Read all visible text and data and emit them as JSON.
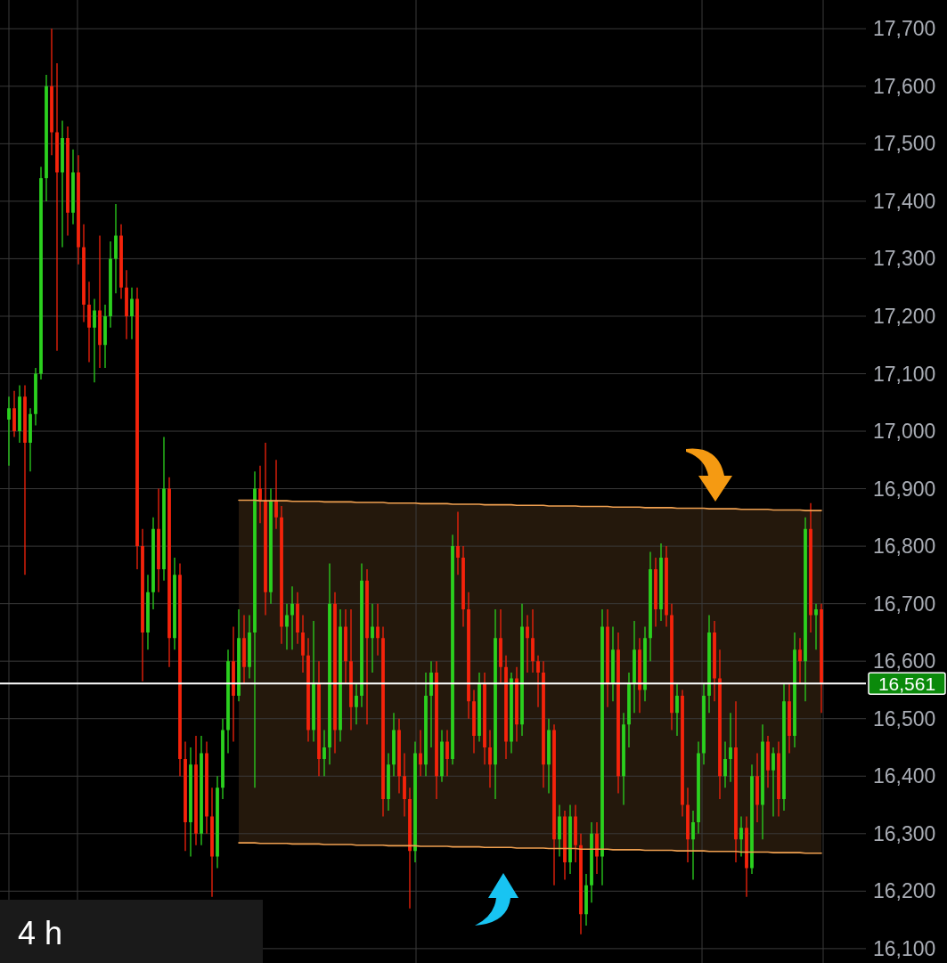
{
  "chart_data": {
    "type": "candlestick",
    "categories": [
      null,
      null,
      null,
      null,
      null,
      null,
      null,
      null,
      null,
      null,
      null,
      null,
      null,
      null,
      null,
      null,
      null,
      null,
      null,
      null,
      null,
      null,
      null,
      null,
      null,
      null,
      null,
      null,
      null,
      null,
      null,
      null,
      null,
      null,
      null,
      null,
      null,
      null,
      null,
      null,
      null,
      null,
      null,
      null,
      null,
      null,
      null,
      null,
      null,
      null,
      null,
      null,
      null,
      null,
      null,
      null,
      null,
      null,
      null,
      null,
      null,
      null,
      null,
      null,
      null,
      null,
      null,
      null,
      null,
      null,
      null,
      null,
      null,
      null,
      null,
      null,
      null,
      null,
      null,
      null,
      null,
      null,
      null,
      null,
      null,
      null,
      null,
      null,
      null,
      null,
      null,
      null,
      null,
      null,
      null,
      null,
      null,
      null,
      null,
      null,
      null,
      null,
      null,
      null,
      null,
      null,
      null,
      null,
      null,
      null,
      null,
      null,
      null,
      null,
      null,
      null,
      null,
      null,
      null,
      null,
      null,
      null,
      null,
      null,
      null,
      null,
      null,
      null,
      null,
      null,
      null,
      null,
      null,
      null,
      null,
      null,
      null,
      null,
      null,
      null,
      null,
      null,
      null,
      null,
      null,
      null,
      null,
      null,
      null,
      null,
      null,
      null,
      null
    ],
    "ohlc": [
      [
        17020,
        17060,
        16940,
        17040
      ],
      [
        17040,
        17070,
        16990,
        17000
      ],
      [
        17000,
        17080,
        16980,
        17060
      ],
      [
        17060,
        17080,
        16750,
        16980
      ],
      [
        16980,
        17040,
        16930,
        17030
      ],
      [
        17030,
        17110,
        17010,
        17100
      ],
      [
        17100,
        17460,
        17090,
        17440
      ],
      [
        17440,
        17620,
        17400,
        17600
      ],
      [
        17600,
        17700,
        17480,
        17520
      ],
      [
        17520,
        17640,
        17140,
        17450
      ],
      [
        17450,
        17540,
        17320,
        17510
      ],
      [
        17510,
        17530,
        17340,
        17380
      ],
      [
        17380,
        17490,
        17360,
        17450
      ],
      [
        17450,
        17480,
        17290,
        17320
      ],
      [
        17320,
        17360,
        17190,
        17220
      ],
      [
        17220,
        17260,
        17120,
        17180
      ],
      [
        17180,
        17230,
        17085,
        17210
      ],
      [
        17210,
        17340,
        17110,
        17150
      ],
      [
        17150,
        17220,
        17110,
        17200
      ],
      [
        17200,
        17330,
        17180,
        17300
      ],
      [
        17300,
        17395,
        17240,
        17340
      ],
      [
        17340,
        17360,
        17230,
        17250
      ],
      [
        17250,
        17280,
        17160,
        17200
      ],
      [
        17200,
        17250,
        17160,
        17230
      ],
      [
        17230,
        17250,
        16760,
        16800
      ],
      [
        16800,
        16830,
        16565,
        16650
      ],
      [
        16650,
        16750,
        16620,
        16720
      ],
      [
        16720,
        16850,
        16690,
        16830
      ],
      [
        16830,
        16900,
        16720,
        16760
      ],
      [
        16760,
        16990,
        16740,
        16900
      ],
      [
        16900,
        16920,
        16590,
        16640
      ],
      [
        16640,
        16780,
        16620,
        16750
      ],
      [
        16750,
        16770,
        16400,
        16430
      ],
      [
        16430,
        16460,
        16270,
        16320
      ],
      [
        16320,
        16450,
        16260,
        16420
      ],
      [
        16420,
        16470,
        16280,
        16300
      ],
      [
        16300,
        16470,
        16280,
        16440
      ],
      [
        16440,
        16460,
        16300,
        16330
      ],
      [
        16330,
        16380,
        16190,
        16260
      ],
      [
        16260,
        16400,
        16240,
        16380
      ],
      [
        16380,
        16500,
        16360,
        16480
      ],
      [
        16480,
        16620,
        16440,
        16600
      ],
      [
        16600,
        16660,
        16460,
        16540
      ],
      [
        16540,
        16690,
        16530,
        16640
      ],
      [
        16640,
        16680,
        16560,
        16590
      ],
      [
        16590,
        16680,
        16570,
        16650
      ],
      [
        16650,
        16930,
        16380,
        16900
      ],
      [
        16900,
        16940,
        16840,
        16880
      ],
      [
        16880,
        16980,
        16680,
        16720
      ],
      [
        16720,
        16900,
        16700,
        16880
      ],
      [
        16880,
        16950,
        16830,
        16850
      ],
      [
        16850,
        16870,
        16630,
        16660
      ],
      [
        16660,
        16700,
        16620,
        16680
      ],
      [
        16680,
        16730,
        16620,
        16700
      ],
      [
        16700,
        16720,
        16630,
        16650
      ],
      [
        16650,
        16680,
        16580,
        16610
      ],
      [
        16610,
        16640,
        16460,
        16480
      ],
      [
        16480,
        16670,
        16460,
        16560
      ],
      [
        16560,
        16600,
        16400,
        16430
      ],
      [
        16430,
        16480,
        16400,
        16450
      ],
      [
        16450,
        16770,
        16420,
        16700
      ],
      [
        16700,
        16720,
        16440,
        16480
      ],
      [
        16480,
        16690,
        16460,
        16660
      ],
      [
        16660,
        16690,
        16560,
        16600
      ],
      [
        16600,
        16690,
        16480,
        16520
      ],
      [
        16520,
        16560,
        16490,
        16540
      ],
      [
        16540,
        16770,
        16520,
        16740
      ],
      [
        16740,
        16760,
        16490,
        16640
      ],
      [
        16640,
        16700,
        16580,
        16660
      ],
      [
        16660,
        16700,
        16610,
        16640
      ],
      [
        16640,
        16660,
        16330,
        16360
      ],
      [
        16360,
        16440,
        16340,
        16420
      ],
      [
        16420,
        16510,
        16400,
        16480
      ],
      [
        16480,
        16500,
        16370,
        16400
      ],
      [
        16400,
        16440,
        16330,
        16360
      ],
      [
        16360,
        16380,
        16170,
        16270
      ],
      [
        16270,
        16460,
        16250,
        16440
      ],
      [
        16440,
        16480,
        16400,
        16420
      ],
      [
        16420,
        16580,
        16400,
        16540
      ],
      [
        16540,
        16600,
        16450,
        16580
      ],
      [
        16580,
        16600,
        16360,
        16400
      ],
      [
        16400,
        16480,
        16390,
        16460
      ],
      [
        16460,
        16480,
        16400,
        16430
      ],
      [
        16430,
        16820,
        16420,
        16800
      ],
      [
        16800,
        16860,
        16750,
        16780
      ],
      [
        16780,
        16800,
        16660,
        16690
      ],
      [
        16690,
        16720,
        16500,
        16530
      ],
      [
        16530,
        16550,
        16440,
        16470
      ],
      [
        16470,
        16580,
        16460,
        16560
      ],
      [
        16560,
        16580,
        16420,
        16450
      ],
      [
        16450,
        16480,
        16380,
        16420
      ],
      [
        16420,
        16690,
        16360,
        16640
      ],
      [
        16640,
        16690,
        16560,
        16590
      ],
      [
        16590,
        16610,
        16430,
        16460
      ],
      [
        16460,
        16580,
        16440,
        16570
      ],
      [
        16570,
        16590,
        16460,
        16490
      ],
      [
        16490,
        16700,
        16470,
        16660
      ],
      [
        16660,
        16680,
        16580,
        16640
      ],
      [
        16640,
        16690,
        16580,
        16600
      ],
      [
        16600,
        16610,
        16520,
        16580
      ],
      [
        16580,
        16600,
        16380,
        16420
      ],
      [
        16420,
        16500,
        16370,
        16480
      ],
      [
        16480,
        16490,
        16210,
        16290
      ],
      [
        16290,
        16350,
        16260,
        16330
      ],
      [
        16330,
        16340,
        16220,
        16250
      ],
      [
        16250,
        16350,
        16230,
        16330
      ],
      [
        16330,
        16350,
        16250,
        16280
      ],
      [
        16280,
        16300,
        16125,
        16160
      ],
      [
        16160,
        16230,
        16140,
        16210
      ],
      [
        16210,
        16320,
        16180,
        16300
      ],
      [
        16300,
        16320,
        16230,
        16260
      ],
      [
        16260,
        16690,
        16210,
        16660
      ],
      [
        16660,
        16690,
        16520,
        16560
      ],
      [
        16560,
        16660,
        16530,
        16620
      ],
      [
        16620,
        16650,
        16370,
        16400
      ],
      [
        16400,
        16510,
        16350,
        16490
      ],
      [
        16490,
        16580,
        16450,
        16560
      ],
      [
        16560,
        16670,
        16510,
        16620
      ],
      [
        16620,
        16640,
        16510,
        16550
      ],
      [
        16550,
        16660,
        16530,
        16640
      ],
      [
        16640,
        16790,
        16600,
        16760
      ],
      [
        16760,
        16780,
        16660,
        16690
      ],
      [
        16690,
        16805,
        16670,
        16780
      ],
      [
        16780,
        16800,
        16660,
        16680
      ],
      [
        16680,
        16700,
        16480,
        16510
      ],
      [
        16510,
        16560,
        16470,
        16540
      ],
      [
        16540,
        16550,
        16330,
        16350
      ],
      [
        16350,
        16380,
        16250,
        16290
      ],
      [
        16290,
        16340,
        16220,
        16320
      ],
      [
        16320,
        16460,
        16300,
        16440
      ],
      [
        16440,
        16560,
        16420,
        16540
      ],
      [
        16540,
        16680,
        16510,
        16650
      ],
      [
        16650,
        16670,
        16530,
        16570
      ],
      [
        16570,
        16620,
        16360,
        16400
      ],
      [
        16400,
        16460,
        16380,
        16430
      ],
      [
        16430,
        16510,
        16390,
        16450
      ],
      [
        16450,
        16530,
        16250,
        16290
      ],
      [
        16290,
        16330,
        16260,
        16310
      ],
      [
        16310,
        16330,
        16190,
        16240
      ],
      [
        16240,
        16420,
        16230,
        16400
      ],
      [
        16400,
        16440,
        16320,
        16350
      ],
      [
        16350,
        16490,
        16290,
        16460
      ],
      [
        16460,
        16470,
        16380,
        16410
      ],
      [
        16410,
        16450,
        16330,
        16440
      ],
      [
        16440,
        16460,
        16330,
        16360
      ],
      [
        16360,
        16560,
        16340,
        16530
      ],
      [
        16530,
        16560,
        16440,
        16470
      ],
      [
        16470,
        16650,
        16450,
        16620
      ],
      [
        16620,
        16640,
        16560,
        16600
      ],
      [
        16600,
        16850,
        16530,
        16830
      ],
      [
        16830,
        16875,
        16650,
        16680
      ],
      [
        16680,
        16700,
        16620,
        16690
      ],
      [
        16690,
        16700,
        16510,
        16561
      ]
    ],
    "colors": [
      "#2bd11e",
      "#f5230b",
      "#2bd11e",
      "#f5230b",
      "#2bd11e",
      "#2bd11e",
      "#2bd11e",
      "#2bd11e",
      "#f5230b",
      "#f5230b",
      "#2bd11e",
      "#f5230b",
      "#2bd11e",
      "#f5230b",
      "#f5230b",
      "#f5230b",
      "#2bd11e",
      "#f5230b",
      "#2bd11e",
      "#2bd11e",
      "#2bd11e",
      "#f5230b",
      "#f5230b",
      "#2bd11e",
      "#f5230b",
      "#f5230b",
      "#2bd11e",
      "#2bd11e",
      "#f5230b",
      "#2bd11e",
      "#f5230b",
      "#2bd11e",
      "#f5230b",
      "#f5230b",
      "#2bd11e",
      "#f5230b",
      "#2bd11e",
      "#f5230b",
      "#f5230b",
      "#2bd11e",
      "#2bd11e",
      "#2bd11e",
      "#f5230b",
      "#2bd11e",
      "#f5230b",
      "#2bd11e",
      "#2bd11e",
      "#f5230b",
      "#f5230b",
      "#2bd11e",
      "#f5230b",
      "#f5230b",
      "#2bd11e",
      "#2bd11e",
      "#f5230b",
      "#f5230b",
      "#f5230b",
      "#2bd11e",
      "#f5230b",
      "#2bd11e",
      "#2bd11e",
      "#f5230b",
      "#2bd11e",
      "#f5230b",
      "#f5230b",
      "#2bd11e",
      "#2bd11e",
      "#f5230b",
      "#2bd11e",
      "#f5230b",
      "#f5230b",
      "#2bd11e",
      "#2bd11e",
      "#f5230b",
      "#f5230b",
      "#f5230b",
      "#2bd11e",
      "#f5230b",
      "#2bd11e",
      "#2bd11e",
      "#f5230b",
      "#2bd11e",
      "#f5230b",
      "#2bd11e",
      "#f5230b",
      "#f5230b",
      "#f5230b",
      "#f5230b",
      "#2bd11e",
      "#f5230b",
      "#f5230b",
      "#2bd11e",
      "#f5230b",
      "#f5230b",
      "#2bd11e",
      "#f5230b",
      "#2bd11e",
      "#f5230b",
      "#f5230b",
      "#f5230b",
      "#f5230b",
      "#2bd11e",
      "#f5230b",
      "#2bd11e",
      "#f5230b",
      "#2bd11e",
      "#f5230b",
      "#f5230b",
      "#2bd11e",
      "#2bd11e",
      "#f5230b",
      "#2bd11e",
      "#f5230b",
      "#2bd11e",
      "#f5230b",
      "#2bd11e",
      "#2bd11e",
      "#2bd11e",
      "#f5230b",
      "#2bd11e",
      "#2bd11e",
      "#f5230b",
      "#2bd11e",
      "#f5230b",
      "#f5230b",
      "#2bd11e",
      "#f5230b",
      "#f5230b",
      "#2bd11e",
      "#2bd11e",
      "#2bd11e",
      "#2bd11e",
      "#f5230b",
      "#f5230b",
      "#2bd11e",
      "#2bd11e",
      "#f5230b",
      "#2bd11e",
      "#f5230b",
      "#2bd11e",
      "#f5230b",
      "#2bd11e",
      "#f5230b",
      "#2bd11e",
      "#f5230b",
      "#2bd11e",
      "#f5230b",
      "#2bd11e",
      "#f5230b",
      "#2bd11e",
      "#f5230b",
      "#2bd11e",
      "#f5230b"
    ],
    "series": [
      {
        "type": "line",
        "color": "#f0a050",
        "values": [
          null,
          null,
          null,
          null,
          null,
          null,
          null,
          null,
          null,
          null,
          null,
          null,
          null,
          null,
          null,
          null,
          null,
          null,
          null,
          null,
          null,
          null,
          null,
          null,
          null,
          null,
          null,
          null,
          null,
          null,
          null,
          null,
          null,
          null,
          null,
          null,
          null,
          null,
          null,
          null,
          null,
          null,
          null,
          16880,
          16880,
          16880,
          16880,
          16879,
          16879,
          16879,
          16879,
          16879,
          16879,
          16878,
          16878,
          16878,
          16878,
          16878,
          16878,
          16877,
          16877,
          16877,
          16877,
          16877,
          16877,
          16876,
          16876,
          16876,
          16876,
          16876,
          16876,
          16875,
          16875,
          16875,
          16875,
          16875,
          16875,
          16874,
          16874,
          16874,
          16874,
          16874,
          16874,
          16873,
          16873,
          16873,
          16873,
          16873,
          16873,
          16872,
          16872,
          16872,
          16872,
          16872,
          16872,
          16871,
          16871,
          16871,
          16871,
          16871,
          16871,
          16870,
          16870,
          16870,
          16870,
          16870,
          16870,
          16869,
          16869,
          16869,
          16869,
          16869,
          16869,
          16868,
          16868,
          16868,
          16868,
          16868,
          16868,
          16867,
          16867,
          16867,
          16867,
          16867,
          16867,
          16866,
          16866,
          16866,
          16866,
          16866,
          16866,
          16865,
          16865,
          16865,
          16865,
          16865,
          16865,
          16864,
          16864,
          16864,
          16864,
          16864,
          16864,
          16863,
          16863,
          16863,
          16863,
          16863,
          16863,
          16862,
          16862,
          16862,
          16862
        ],
        "upper": [
          null,
          null,
          null,
          null,
          null,
          null,
          null,
          null,
          null,
          null,
          null,
          null,
          null,
          null,
          null,
          null,
          null,
          null,
          null,
          null,
          null,
          null,
          null,
          null,
          null,
          null,
          null,
          null,
          null,
          null,
          null,
          null,
          null,
          null,
          null,
          null,
          null,
          null,
          null,
          null,
          null,
          null,
          null,
          16880,
          16880,
          16880,
          16880,
          16879,
          16879,
          16879,
          16879,
          16879,
          16879,
          16878,
          16878,
          16878,
          16878,
          16878,
          16878,
          16877,
          16877,
          16877,
          16877,
          16877,
          16877,
          16876,
          16876,
          16876,
          16876,
          16876,
          16876,
          16875,
          16875,
          16875,
          16875,
          16875,
          16875,
          16874,
          16874,
          16874,
          16874,
          16874,
          16874,
          16873,
          16873,
          16873,
          16873,
          16873,
          16873,
          16872,
          16872,
          16872,
          16872,
          16872,
          16872,
          16871,
          16871,
          16871,
          16871,
          16871,
          16871,
          16870,
          16870,
          16870,
          16870,
          16870,
          16870,
          16869,
          16869,
          16869,
          16869,
          16869,
          16869,
          16868,
          16868,
          16868,
          16868,
          16868,
          16868,
          16867,
          16867,
          16867,
          16867,
          16867,
          16867,
          16866,
          16866,
          16866,
          16866,
          16866,
          16866,
          16865,
          16865,
          16865,
          16865,
          16865,
          16865,
          16864,
          16864,
          16864,
          16864,
          16864,
          16864,
          16863,
          16863,
          16863,
          16863,
          16863,
          16863,
          16862,
          16862,
          16862,
          16862
        ],
        "lower": [
          null,
          null,
          null,
          null,
          null,
          null,
          null,
          null,
          null,
          null,
          null,
          null,
          null,
          null,
          null,
          null,
          null,
          null,
          null,
          null,
          null,
          null,
          null,
          null,
          null,
          null,
          null,
          null,
          null,
          null,
          null,
          null,
          null,
          null,
          null,
          null,
          null,
          null,
          null,
          null,
          null,
          null,
          null,
          16284,
          16284,
          16284,
          16284,
          16283,
          16283,
          16283,
          16283,
          16283,
          16283,
          16282,
          16282,
          16282,
          16282,
          16282,
          16282,
          16281,
          16281,
          16281,
          16281,
          16281,
          16281,
          16280,
          16280,
          16280,
          16280,
          16280,
          16280,
          16279,
          16279,
          16279,
          16279,
          16279,
          16279,
          16278,
          16278,
          16278,
          16278,
          16278,
          16278,
          16277,
          16277,
          16277,
          16277,
          16277,
          16277,
          16276,
          16276,
          16276,
          16276,
          16276,
          16276,
          16275,
          16275,
          16275,
          16275,
          16275,
          16275,
          16274,
          16274,
          16274,
          16274,
          16274,
          16274,
          16273,
          16273,
          16273,
          16273,
          16273,
          16273,
          16272,
          16272,
          16272,
          16272,
          16272,
          16272,
          16271,
          16271,
          16271,
          16271,
          16271,
          16271,
          16270,
          16270,
          16270,
          16270,
          16270,
          16270,
          16269,
          16269,
          16269,
          16269,
          16269,
          16269,
          16268,
          16268,
          16268,
          16268,
          16268,
          16268,
          16267,
          16267,
          16267,
          16267,
          16267,
          16267,
          16266,
          16266,
          16266,
          16266
        ]
      },
      {
        "type": "line",
        "color": "#f0a050",
        "values": [
          null,
          null,
          null,
          null,
          null,
          null,
          null,
          null,
          null,
          null,
          null,
          null,
          null,
          null,
          null,
          null,
          null,
          null,
          null,
          null,
          null,
          null,
          null,
          null,
          null,
          null,
          null,
          null,
          null,
          null,
          null,
          null,
          null,
          null,
          null,
          null,
          null,
          null,
          null,
          null,
          null,
          null,
          null,
          16284,
          16284,
          16284,
          16284,
          16283,
          16283,
          16283,
          16283,
          16283,
          16283,
          16282,
          16282,
          16282,
          16282,
          16282,
          16282,
          16281,
          16281,
          16281,
          16281,
          16281,
          16281,
          16280,
          16280,
          16280,
          16280,
          16280,
          16280,
          16279,
          16279,
          16279,
          16279,
          16279,
          16279,
          16278,
          16278,
          16278,
          16278,
          16278,
          16278,
          16277,
          16277,
          16277,
          16277,
          16277,
          16277,
          16276,
          16276,
          16276,
          16276,
          16276,
          16276,
          16275,
          16275,
          16275,
          16275,
          16275,
          16275,
          16274,
          16274,
          16274,
          16274,
          16274,
          16274,
          16273,
          16273,
          16273,
          16273,
          16273,
          16273,
          16272,
          16272,
          16272,
          16272,
          16272,
          16272,
          16271,
          16271,
          16271,
          16271,
          16271,
          16271,
          16270,
          16270,
          16270,
          16270,
          16270,
          16270,
          16269,
          16269,
          16269,
          16269,
          16269,
          16269,
          16268,
          16268,
          16268,
          16268,
          16268,
          16268,
          16267,
          16267,
          16267,
          16267,
          16267,
          16267,
          16266,
          16266,
          16266,
          16266
        ]
      }
    ],
    "ylim": [
      16075,
      17750
    ],
    "yticks": [
      {
        "value": 16100,
        "label": "16,100"
      },
      {
        "value": 16200,
        "label": "16,200"
      },
      {
        "value": 16300,
        "label": "16,300"
      },
      {
        "value": 16400,
        "label": "16,400"
      },
      {
        "value": 16500,
        "label": "16,500"
      },
      {
        "value": 16600,
        "label": "16,600"
      },
      {
        "value": 16700,
        "label": "16,700"
      },
      {
        "value": 16800,
        "label": "16,800"
      },
      {
        "value": 16900,
        "label": "16,900"
      },
      {
        "value": 17000,
        "label": "17,000"
      },
      {
        "value": 17100,
        "label": "17,100"
      },
      {
        "value": 17200,
        "label": "17,200"
      },
      {
        "value": 17300,
        "label": "17,300"
      },
      {
        "value": 17400,
        "label": "17,400"
      },
      {
        "value": 17500,
        "label": "17,500"
      },
      {
        "value": 17600,
        "label": "17,600"
      },
      {
        "value": 17700,
        "label": "17,700"
      }
    ],
    "ref_lines": [
      {
        "axis": "y",
        "value": 16561,
        "label": "16,561",
        "color": "#ffffff"
      }
    ],
    "annotations": [
      "4 h"
    ],
    "grid": true,
    "tick_labels": "y"
  }
}
